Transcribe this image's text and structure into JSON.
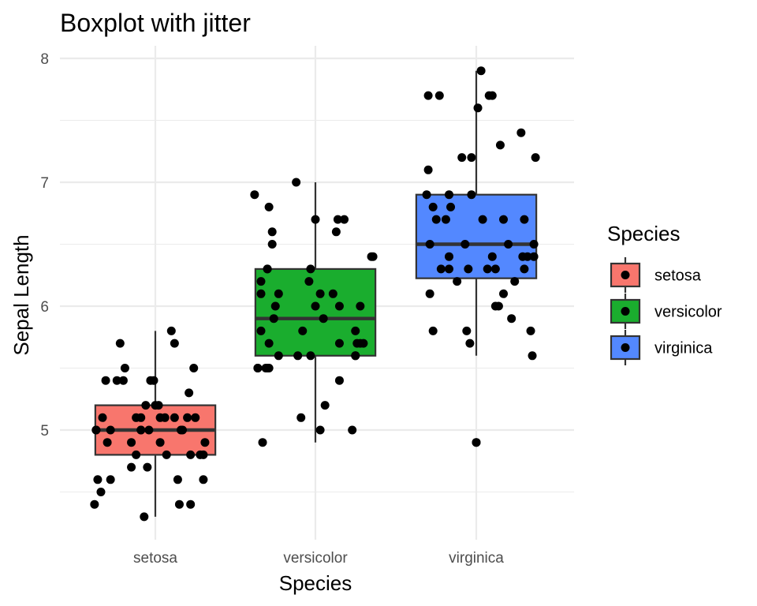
{
  "chart_data": {
    "type": "boxplot",
    "title": "Boxplot with jitter",
    "xlabel": "Species",
    "ylabel": "Sepal Length",
    "categories": [
      "setosa",
      "versicolor",
      "virginica"
    ],
    "ylim": [
      4.15,
      8.1
    ],
    "yticks": [
      5,
      6,
      7,
      8
    ],
    "grid": true,
    "legend": {
      "title": "Species",
      "position": "right",
      "entries": [
        "setosa",
        "versicolor",
        "virginica"
      ]
    },
    "colors": {
      "setosa": "#F8766D",
      "versicolor": "#1AAD2E",
      "virginica": "#5388FF"
    },
    "boxes": [
      {
        "name": "setosa",
        "min": 4.3,
        "q1": 4.8,
        "median": 5.0,
        "q3": 5.2,
        "max": 5.8,
        "outliers": []
      },
      {
        "name": "versicolor",
        "min": 4.9,
        "q1": 5.6,
        "median": 5.9,
        "q3": 6.3,
        "max": 7.0,
        "outliers": []
      },
      {
        "name": "virginica",
        "min": 5.6,
        "q1": 6.225,
        "median": 6.5,
        "q3": 6.9,
        "max": 7.9,
        "outliers": [
          4.9
        ]
      }
    ],
    "points": [
      {
        "c": 0,
        "y": 5.1,
        "j": -0.33
      },
      {
        "c": 0,
        "y": 4.9,
        "j": -0.3
      },
      {
        "c": 0,
        "y": 4.7,
        "j": -0.05
      },
      {
        "c": 0,
        "y": 4.6,
        "j": -0.28
      },
      {
        "c": 0,
        "y": 5.0,
        "j": -0.37
      },
      {
        "c": 0,
        "y": 5.4,
        "j": -0.01
      },
      {
        "c": 0,
        "y": 4.6,
        "j": 0.3
      },
      {
        "c": 0,
        "y": 5.0,
        "j": -0.37
      },
      {
        "c": 0,
        "y": 4.4,
        "j": 0.15
      },
      {
        "c": 0,
        "y": 4.9,
        "j": 0.31
      },
      {
        "c": 0,
        "y": 5.4,
        "j": -0.03
      },
      {
        "c": 0,
        "y": 4.8,
        "j": 0.22
      },
      {
        "c": 0,
        "y": 4.8,
        "j": 0.07
      },
      {
        "c": 0,
        "y": 4.3,
        "j": -0.07
      },
      {
        "c": 0,
        "y": 5.8,
        "j": 0.1
      },
      {
        "c": 0,
        "y": 5.7,
        "j": -0.22
      },
      {
        "c": 0,
        "y": 5.4,
        "j": -0.31
      },
      {
        "c": 0,
        "y": 5.1,
        "j": 0.03
      },
      {
        "c": 0,
        "y": 5.7,
        "j": 0.12
      },
      {
        "c": 0,
        "y": 5.1,
        "j": 0.2
      },
      {
        "c": 0,
        "y": 5.4,
        "j": -0.24
      },
      {
        "c": 0,
        "y": 5.1,
        "j": 0.25
      },
      {
        "c": 0,
        "y": 4.6,
        "j": -0.36
      },
      {
        "c": 0,
        "y": 5.1,
        "j": -0.09
      },
      {
        "c": 0,
        "y": 4.8,
        "j": -0.12
      },
      {
        "c": 0,
        "y": 5.0,
        "j": 0.16
      },
      {
        "c": 0,
        "y": 5.0,
        "j": -0.28
      },
      {
        "c": 0,
        "y": 5.2,
        "j": -0.06
      },
      {
        "c": 0,
        "y": 5.2,
        "j": 0.0
      },
      {
        "c": 0,
        "y": 4.7,
        "j": -0.15
      },
      {
        "c": 0,
        "y": 4.8,
        "j": 0.28
      },
      {
        "c": 0,
        "y": 5.4,
        "j": -0.2
      },
      {
        "c": 0,
        "y": 5.2,
        "j": 0.02
      },
      {
        "c": 0,
        "y": 5.5,
        "j": 0.24
      },
      {
        "c": 0,
        "y": 4.9,
        "j": 0.03
      },
      {
        "c": 0,
        "y": 5.0,
        "j": -0.09
      },
      {
        "c": 0,
        "y": 5.5,
        "j": -0.19
      },
      {
        "c": 0,
        "y": 4.9,
        "j": -0.15
      },
      {
        "c": 0,
        "y": 4.4,
        "j": -0.38
      },
      {
        "c": 0,
        "y": 5.1,
        "j": 0.12
      },
      {
        "c": 0,
        "y": 5.0,
        "j": -0.09
      },
      {
        "c": 0,
        "y": 4.5,
        "j": -0.34
      },
      {
        "c": 0,
        "y": 4.4,
        "j": 0.22
      },
      {
        "c": 0,
        "y": 5.0,
        "j": 0.17
      },
      {
        "c": 0,
        "y": 5.1,
        "j": -0.12
      },
      {
        "c": 0,
        "y": 4.8,
        "j": 0.3
      },
      {
        "c": 0,
        "y": 5.1,
        "j": 0.06
      },
      {
        "c": 0,
        "y": 4.6,
        "j": 0.14
      },
      {
        "c": 0,
        "y": 5.3,
        "j": 0.21
      },
      {
        "c": 0,
        "y": 5.0,
        "j": -0.04
      },
      {
        "c": 1,
        "y": 7.0,
        "j": -0.12
      },
      {
        "c": 1,
        "y": 6.4,
        "j": 0.35
      },
      {
        "c": 1,
        "y": 6.9,
        "j": -0.38
      },
      {
        "c": 1,
        "y": 5.5,
        "j": -0.31
      },
      {
        "c": 1,
        "y": 6.5,
        "j": -0.27
      },
      {
        "c": 1,
        "y": 5.7,
        "j": 0.26
      },
      {
        "c": 1,
        "y": 6.3,
        "j": -0.3
      },
      {
        "c": 1,
        "y": 4.9,
        "j": -0.33
      },
      {
        "c": 1,
        "y": 6.6,
        "j": -0.27
      },
      {
        "c": 1,
        "y": 5.2,
        "j": 0.06
      },
      {
        "c": 1,
        "y": 5.0,
        "j": 0.23
      },
      {
        "c": 1,
        "y": 5.9,
        "j": -0.26
      },
      {
        "c": 1,
        "y": 6.0,
        "j": 0.15
      },
      {
        "c": 1,
        "y": 6.1,
        "j": 0.11
      },
      {
        "c": 1,
        "y": 5.6,
        "j": -0.23
      },
      {
        "c": 1,
        "y": 6.7,
        "j": 0.0
      },
      {
        "c": 1,
        "y": 5.6,
        "j": -0.11
      },
      {
        "c": 1,
        "y": 5.8,
        "j": -0.34
      },
      {
        "c": 1,
        "y": 6.2,
        "j": -0.34
      },
      {
        "c": 1,
        "y": 5.6,
        "j": 0.25
      },
      {
        "c": 1,
        "y": 5.9,
        "j": 0.05
      },
      {
        "c": 1,
        "y": 6.1,
        "j": -0.34
      },
      {
        "c": 1,
        "y": 6.3,
        "j": -0.3
      },
      {
        "c": 1,
        "y": 6.1,
        "j": 0.03
      },
      {
        "c": 1,
        "y": 6.4,
        "j": 0.36
      },
      {
        "c": 1,
        "y": 6.6,
        "j": 0.13
      },
      {
        "c": 1,
        "y": 6.8,
        "j": -0.29
      },
      {
        "c": 1,
        "y": 6.7,
        "j": 0.14
      },
      {
        "c": 1,
        "y": 6.0,
        "j": 0.28
      },
      {
        "c": 1,
        "y": 5.7,
        "j": 0.15
      },
      {
        "c": 1,
        "y": 5.5,
        "j": -0.36
      },
      {
        "c": 1,
        "y": 5.5,
        "j": -0.3
      },
      {
        "c": 1,
        "y": 5.8,
        "j": -0.08
      },
      {
        "c": 1,
        "y": 6.0,
        "j": 0.0
      },
      {
        "c": 1,
        "y": 5.4,
        "j": 0.15
      },
      {
        "c": 1,
        "y": 6.0,
        "j": -0.25
      },
      {
        "c": 1,
        "y": 6.7,
        "j": 0.18
      },
      {
        "c": 1,
        "y": 6.3,
        "j": -0.03
      },
      {
        "c": 1,
        "y": 5.6,
        "j": 0.25
      },
      {
        "c": 1,
        "y": 5.5,
        "j": -0.29
      },
      {
        "c": 1,
        "y": 5.5,
        "j": -0.36
      },
      {
        "c": 1,
        "y": 6.1,
        "j": -0.23
      },
      {
        "c": 1,
        "y": 5.8,
        "j": 0.25
      },
      {
        "c": 1,
        "y": 5.0,
        "j": 0.03
      },
      {
        "c": 1,
        "y": 5.6,
        "j": -0.03
      },
      {
        "c": 1,
        "y": 5.7,
        "j": -0.29
      },
      {
        "c": 1,
        "y": 5.7,
        "j": 0.28
      },
      {
        "c": 1,
        "y": 6.2,
        "j": -0.04
      },
      {
        "c": 1,
        "y": 5.1,
        "j": -0.09
      },
      {
        "c": 1,
        "y": 5.7,
        "j": 0.3
      },
      {
        "c": 2,
        "y": 6.3,
        "j": -0.22
      },
      {
        "c": 2,
        "y": 5.8,
        "j": -0.27
      },
      {
        "c": 2,
        "y": 7.1,
        "j": -0.3
      },
      {
        "c": 2,
        "y": 6.3,
        "j": 0.07
      },
      {
        "c": 2,
        "y": 6.5,
        "j": -0.29
      },
      {
        "c": 2,
        "y": 7.6,
        "j": 0.01
      },
      {
        "c": 2,
        "y": 4.9,
        "j": 0.0
      },
      {
        "c": 2,
        "y": 7.3,
        "j": 0.15
      },
      {
        "c": 2,
        "y": 6.7,
        "j": 0.17
      },
      {
        "c": 2,
        "y": 7.2,
        "j": -0.03
      },
      {
        "c": 2,
        "y": 6.5,
        "j": 0.2
      },
      {
        "c": 2,
        "y": 6.4,
        "j": 0.29
      },
      {
        "c": 2,
        "y": 6.8,
        "j": -0.16
      },
      {
        "c": 2,
        "y": 5.7,
        "j": -0.04
      },
      {
        "c": 2,
        "y": 5.8,
        "j": -0.06
      },
      {
        "c": 2,
        "y": 6.4,
        "j": 0.1
      },
      {
        "c": 2,
        "y": 6.5,
        "j": -0.07
      },
      {
        "c": 2,
        "y": 7.7,
        "j": -0.3
      },
      {
        "c": 2,
        "y": 7.7,
        "j": -0.23
      },
      {
        "c": 2,
        "y": 6.0,
        "j": 0.14
      },
      {
        "c": 2,
        "y": 6.9,
        "j": -0.31
      },
      {
        "c": 2,
        "y": 5.6,
        "j": 0.35
      },
      {
        "c": 2,
        "y": 7.7,
        "j": 0.08
      },
      {
        "c": 2,
        "y": 6.3,
        "j": 0.3
      },
      {
        "c": 2,
        "y": 6.7,
        "j": -0.25
      },
      {
        "c": 2,
        "y": 7.2,
        "j": 0.37
      },
      {
        "c": 2,
        "y": 6.2,
        "j": -0.12
      },
      {
        "c": 2,
        "y": 6.1,
        "j": 0.17
      },
      {
        "c": 2,
        "y": 6.4,
        "j": -0.17
      },
      {
        "c": 2,
        "y": 7.2,
        "j": -0.09
      },
      {
        "c": 2,
        "y": 7.4,
        "j": 0.28
      },
      {
        "c": 2,
        "y": 7.9,
        "j": 0.03
      },
      {
        "c": 2,
        "y": 6.4,
        "j": 0.32
      },
      {
        "c": 2,
        "y": 6.3,
        "j": -0.17
      },
      {
        "c": 2,
        "y": 6.1,
        "j": -0.29
      },
      {
        "c": 2,
        "y": 7.7,
        "j": 0.1
      },
      {
        "c": 2,
        "y": 6.3,
        "j": 0.12
      },
      {
        "c": 2,
        "y": 6.4,
        "j": 0.36
      },
      {
        "c": 2,
        "y": 6.0,
        "j": 0.12
      },
      {
        "c": 2,
        "y": 6.9,
        "j": -0.17
      },
      {
        "c": 2,
        "y": 6.7,
        "j": 0.3
      },
      {
        "c": 2,
        "y": 6.9,
        "j": -0.03
      },
      {
        "c": 2,
        "y": 5.8,
        "j": 0.34
      },
      {
        "c": 2,
        "y": 6.8,
        "j": -0.27
      },
      {
        "c": 2,
        "y": 6.7,
        "j": 0.04
      },
      {
        "c": 2,
        "y": 6.7,
        "j": -0.19
      },
      {
        "c": 2,
        "y": 6.3,
        "j": -0.05
      },
      {
        "c": 2,
        "y": 6.5,
        "j": 0.36
      },
      {
        "c": 2,
        "y": 6.2,
        "j": 0.24
      },
      {
        "c": 2,
        "y": 5.9,
        "j": 0.22
      }
    ]
  }
}
